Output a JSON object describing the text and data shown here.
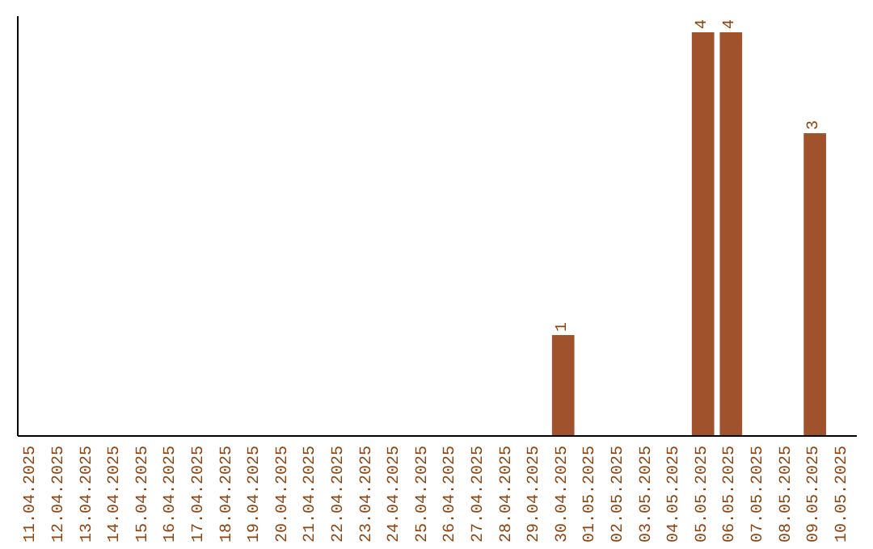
{
  "chart_data": {
    "type": "bar",
    "categories": [
      "11.04.2025",
      "12.04.2025",
      "13.04.2025",
      "14.04.2025",
      "15.04.2025",
      "16.04.2025",
      "17.04.2025",
      "18.04.2025",
      "19.04.2025",
      "20.04.2025",
      "21.04.2025",
      "22.04.2025",
      "23.04.2025",
      "24.04.2025",
      "25.04.2025",
      "26.04.2025",
      "27.04.2025",
      "28.04.2025",
      "29.04.2025",
      "30.04.2025",
      "01.05.2025",
      "02.05.2025",
      "03.05.2025",
      "04.05.2025",
      "05.05.2025",
      "06.05.2025",
      "07.05.2025",
      "08.05.2025",
      "09.05.2025",
      "10.05.2025"
    ],
    "values": [
      null,
      null,
      null,
      null,
      null,
      null,
      null,
      null,
      null,
      null,
      null,
      null,
      null,
      null,
      null,
      null,
      null,
      null,
      null,
      1,
      null,
      null,
      null,
      null,
      4,
      4,
      null,
      null,
      3,
      null
    ],
    "color": "#a0522d",
    "data_labels": true,
    "tick_labels": "x"
  }
}
